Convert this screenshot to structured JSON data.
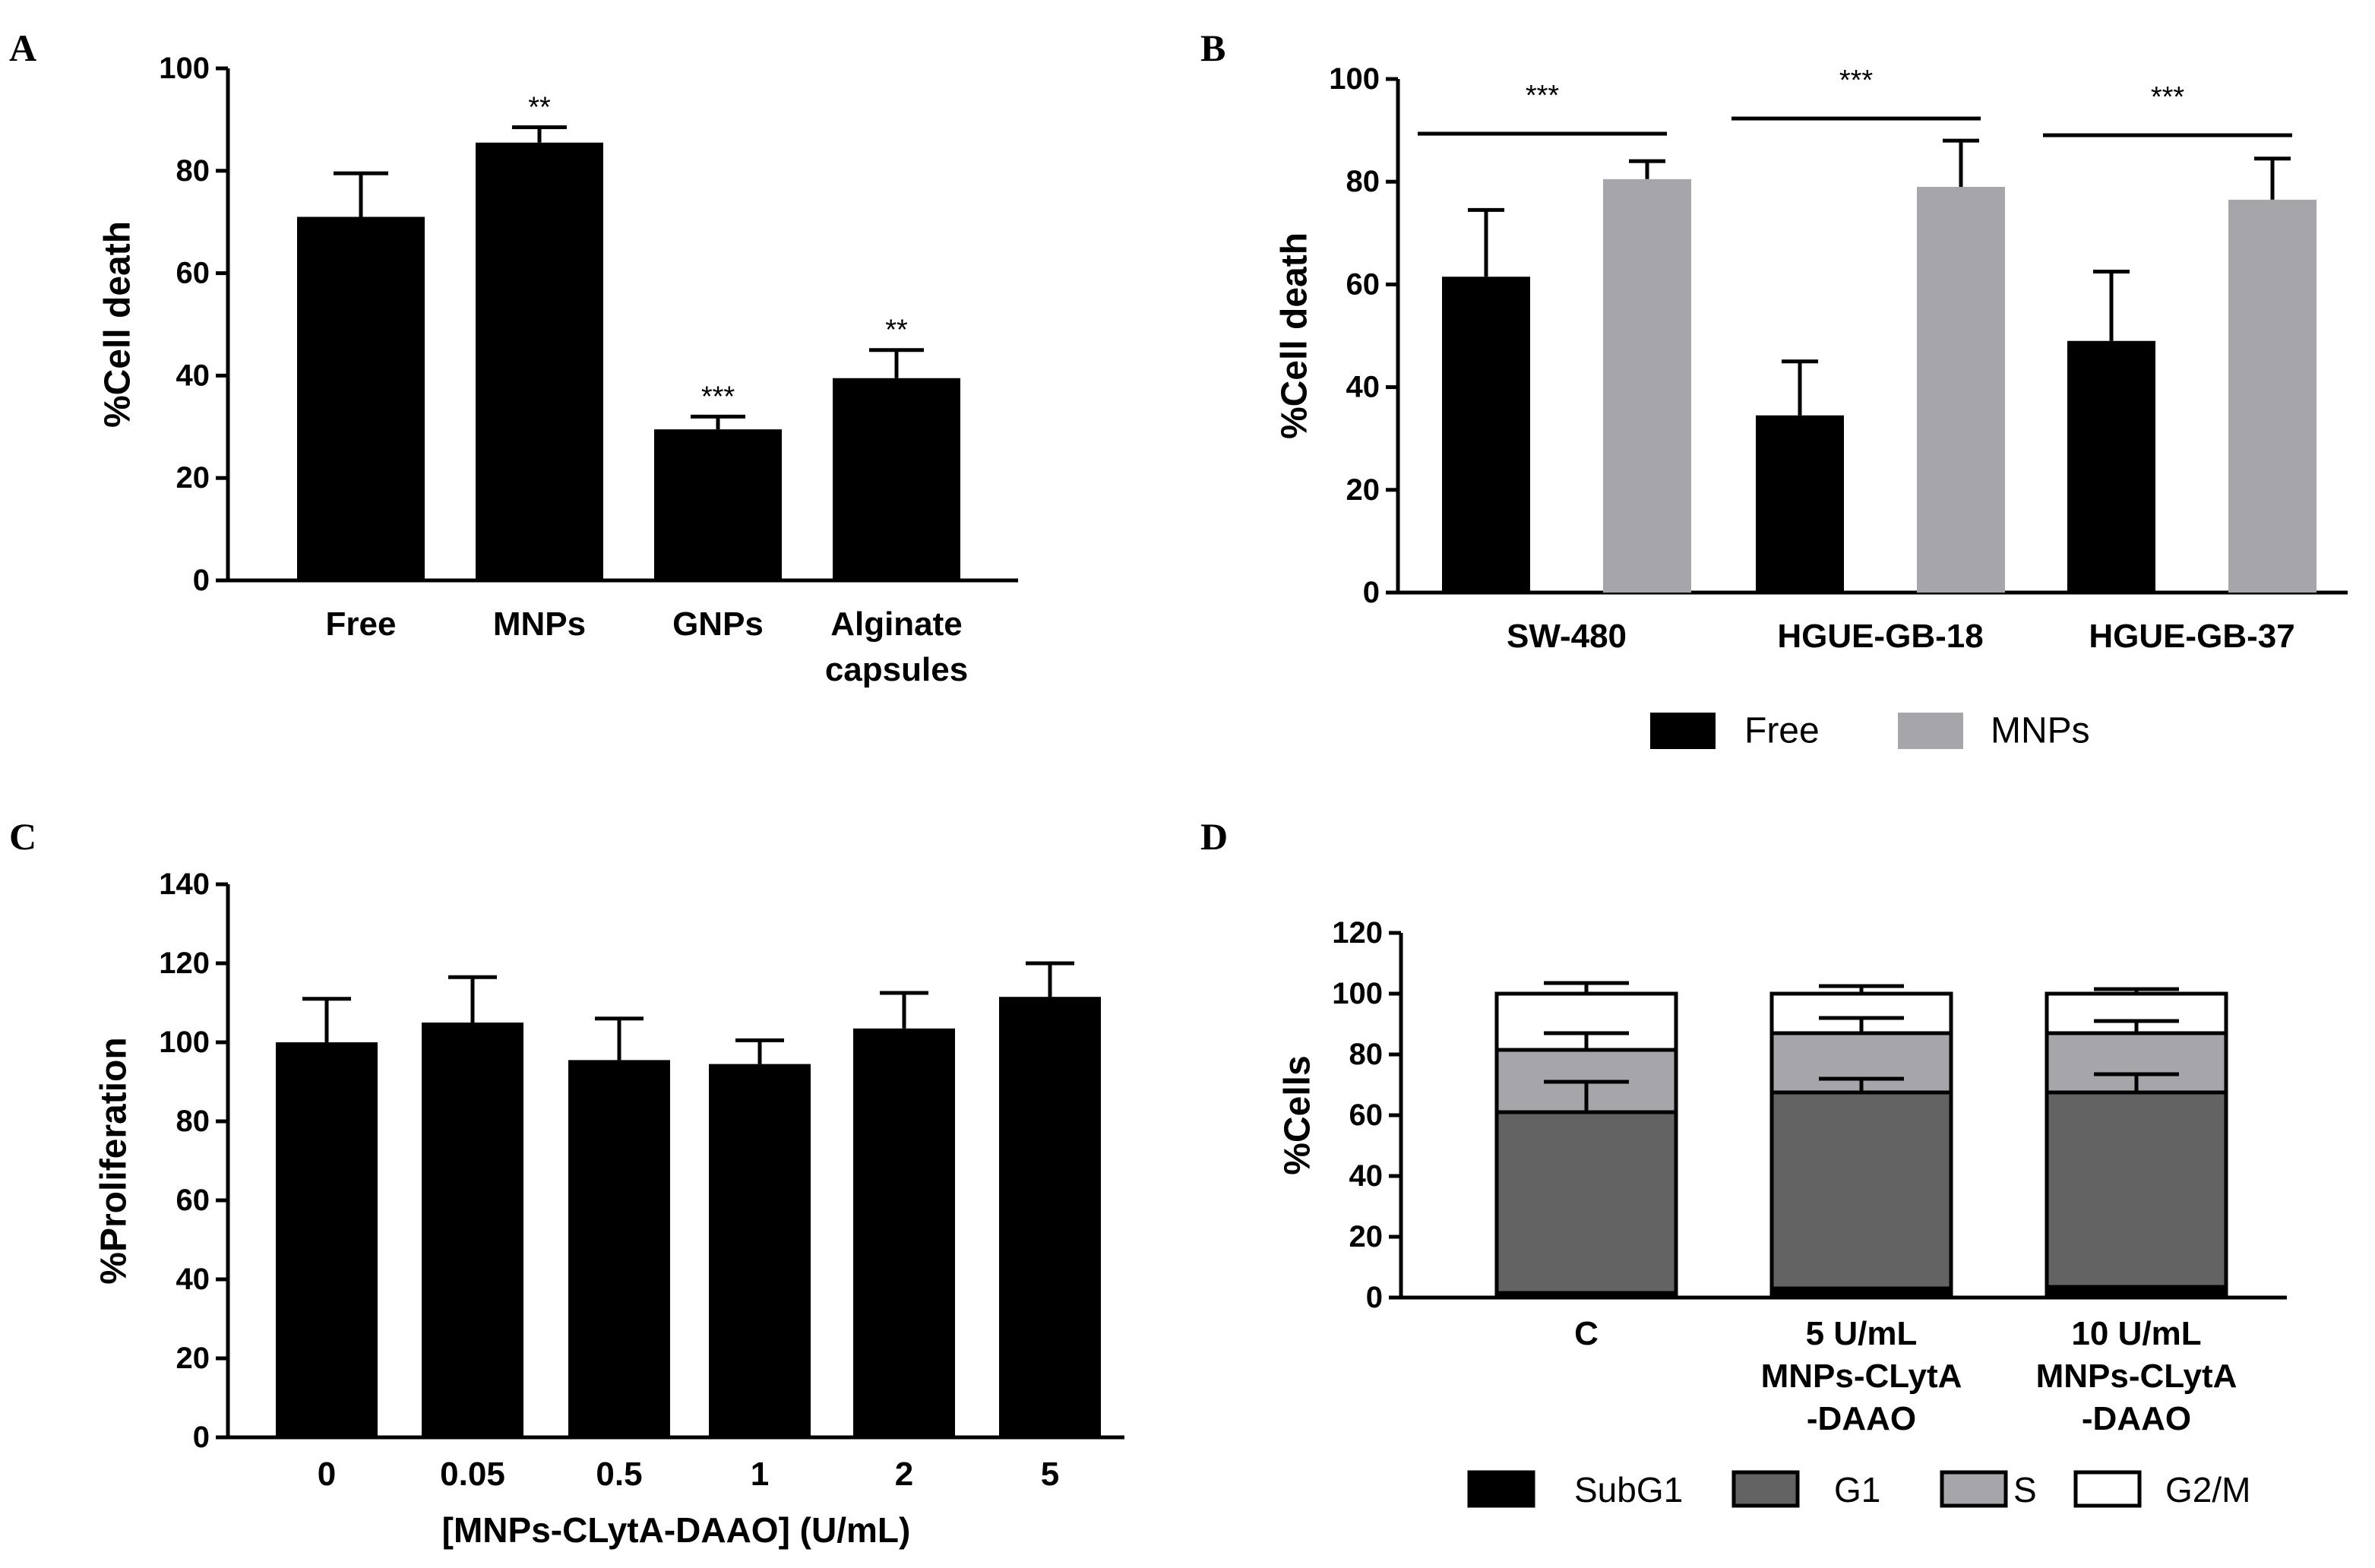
{
  "colors": {
    "black": "#000000",
    "dark_gray": "#636363",
    "light_gray": "#a6a6aa",
    "white": "#ffffff"
  },
  "chart_data": [
    {
      "panel": "A",
      "type": "bar",
      "ylabel": "%Cell death",
      "ylim": [
        0,
        100
      ],
      "yticks": [
        0,
        20,
        40,
        60,
        80,
        100
      ],
      "categories": [
        [
          "Free"
        ],
        [
          "MNPs"
        ],
        [
          "GNPs"
        ],
        [
          "Alginate",
          "capsules"
        ]
      ],
      "values": [
        71,
        85.5,
        29.5,
        39.5
      ],
      "errors": [
        8.5,
        3,
        2.5,
        5.5
      ],
      "significance": [
        "",
        "**",
        "***",
        "**"
      ]
    },
    {
      "panel": "B",
      "type": "bar",
      "grouped": true,
      "ylabel": "%Cell death",
      "ylim": [
        0,
        100
      ],
      "yticks": [
        0,
        20,
        40,
        60,
        80,
        100
      ],
      "categories": [
        "SW-480",
        "HGUE-GB-18",
        "HGUE-GB-37"
      ],
      "series": [
        {
          "name": "Free",
          "color": "#000000",
          "values": [
            61.5,
            34.5,
            49
          ],
          "errors": [
            13,
            10.5,
            13.5
          ]
        },
        {
          "name": "MNPs",
          "color": "#a6a6aa",
          "values": [
            80.5,
            79,
            76.5
          ],
          "errors": [
            3.5,
            9,
            8
          ]
        }
      ],
      "significance": [
        "***",
        "***",
        "***"
      ],
      "legend": "bottom"
    },
    {
      "panel": "C",
      "type": "bar",
      "xlabel": "[MNPs-CLytA-DAAO] (U/mL)",
      "ylabel": "%Proliferation",
      "ylim": [
        0,
        140
      ],
      "yticks": [
        0,
        20,
        40,
        60,
        80,
        100,
        120,
        140
      ],
      "categories": [
        [
          "0"
        ],
        [
          "0.05"
        ],
        [
          "0.5"
        ],
        [
          "1"
        ],
        [
          "2"
        ],
        [
          "5"
        ]
      ],
      "values": [
        100,
        105,
        95.5,
        94.5,
        103.5,
        111.5
      ],
      "errors": [
        11,
        11.5,
        10.5,
        6,
        9,
        8.5
      ]
    },
    {
      "panel": "D",
      "type": "stacked-bar",
      "ylabel": "%Cells",
      "ylim": [
        0,
        120
      ],
      "yticks": [
        0,
        20,
        40,
        60,
        80,
        100,
        120
      ],
      "categories": [
        [
          "C"
        ],
        [
          "5 U/mL",
          "MNPs-CLytA",
          "-DAAO"
        ],
        [
          "10 U/mL",
          "MNPs-CLytA",
          "-DAAO"
        ]
      ],
      "series": [
        {
          "name": "SubG1",
          "color": "#000000",
          "values": [
            1.5,
            3,
            3.5
          ],
          "errors": [
            0.5,
            0.8,
            0.8
          ]
        },
        {
          "name": "G1",
          "color": "#636363",
          "values": [
            59.5,
            64.5,
            64
          ],
          "errors": [
            10,
            4.5,
            6
          ]
        },
        {
          "name": "S",
          "color": "#a6a6aa",
          "values": [
            20.5,
            19.5,
            19.5
          ],
          "errors": [
            5.5,
            5,
            4
          ]
        },
        {
          "name": "G2/M",
          "color": "#ffffff",
          "values": [
            18.5,
            13,
            13
          ],
          "errors": [
            3.5,
            2.5,
            1.5
          ]
        }
      ],
      "legend": "bottom"
    }
  ]
}
